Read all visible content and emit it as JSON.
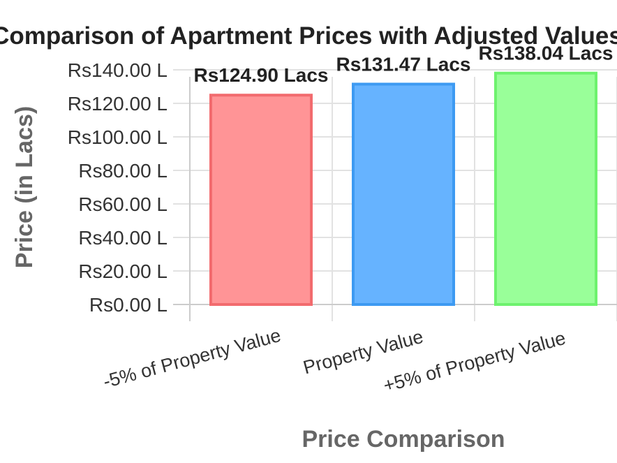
{
  "chart_data": {
    "type": "bar",
    "title": "Comparison of Apartment Prices with Adjusted Values",
    "xlabel": "Price Comparison",
    "ylabel": "Price (in Lacs)",
    "categories": [
      "-5% of Property Value",
      "Property Value",
      "+5% of Property Value"
    ],
    "values": [
      124.9,
      131.47,
      138.04
    ],
    "data_labels": [
      "Rs124.90 Lacs",
      "Rs131.47 Lacs",
      "Rs138.04 Lacs"
    ],
    "yticks": [
      0,
      20,
      40,
      60,
      80,
      100,
      120,
      140
    ],
    "ytick_labels": [
      "Rs0.00 L",
      "Rs20.00 L",
      "Rs40.00 L",
      "Rs60.00 L",
      "Rs80.00 L",
      "Rs100.00 L",
      "Rs120.00 L",
      "Rs140.00 L"
    ],
    "ylim": [
      0,
      140
    ],
    "grid": true,
    "legend": "none",
    "colors": {
      "fills": [
        "#ff9496",
        "#66b3ff",
        "#99ff99"
      ],
      "strokes": [
        "#f26b6e",
        "#3d9af2",
        "#6ef26e"
      ],
      "grid": "#e2e2e2",
      "axis": "#cccccc"
    }
  }
}
